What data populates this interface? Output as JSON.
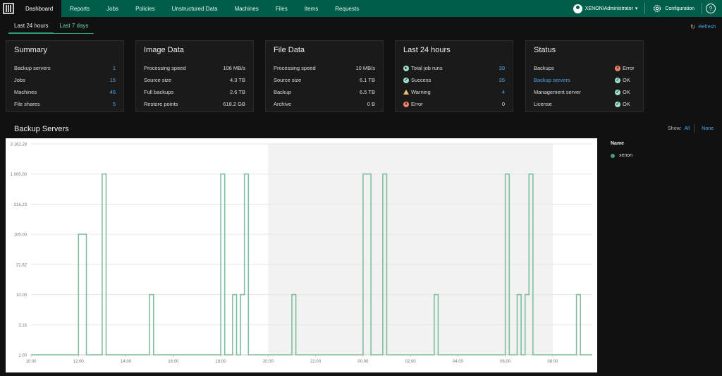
{
  "nav": {
    "items": [
      "Dashboard",
      "Reports",
      "Jobs",
      "Policies",
      "Unstructured Data",
      "Machines",
      "Files",
      "Items",
      "Requests"
    ],
    "user": "XENON\\Administrator",
    "config": "Configuration",
    "help": "?"
  },
  "period_tabs": [
    "Last 24 hours",
    "Last 7 days"
  ],
  "refresh": "Refresh",
  "cards": {
    "summary": {
      "title": "Summary",
      "rows": [
        {
          "k": "Backup servers",
          "v": "1"
        },
        {
          "k": "Jobs",
          "v": "15"
        },
        {
          "k": "Machines",
          "v": "46"
        },
        {
          "k": "File shares",
          "v": "5"
        }
      ]
    },
    "image": {
      "title": "Image Data",
      "rows": [
        {
          "k": "Processing speed",
          "v": "106 MB/s"
        },
        {
          "k": "Source size",
          "v": "4.3 TB"
        },
        {
          "k": "Full backups",
          "v": "2.6 TB"
        },
        {
          "k": "Restore points",
          "v": "618.2 GB"
        }
      ]
    },
    "file": {
      "title": "File Data",
      "rows": [
        {
          "k": "Processing speed",
          "v": "10 MB/s"
        },
        {
          "k": "Source size",
          "v": "6.1 TB"
        },
        {
          "k": "Backup",
          "v": "6.5 TB"
        },
        {
          "k": "Archive",
          "v": "0 B"
        }
      ]
    },
    "last24": {
      "title": "Last 24 hours",
      "rows": [
        {
          "k": "Total job runs",
          "v": "39"
        },
        {
          "k": "Success",
          "v": "35"
        },
        {
          "k": "Warning",
          "v": "4"
        },
        {
          "k": "Error",
          "v": "0"
        }
      ]
    },
    "status": {
      "title": "Status",
      "rows": [
        {
          "k": "Backups",
          "v": "Error"
        },
        {
          "k": "Backup servers",
          "v": "OK"
        },
        {
          "k": "Management server",
          "v": "OK"
        },
        {
          "k": "License",
          "v": "OK"
        }
      ]
    }
  },
  "section": {
    "title": "Backup Servers",
    "show_label": "Show:",
    "all": "All",
    "none": "None"
  },
  "legend": {
    "header": "Name",
    "item": "xenon"
  },
  "colors": {
    "topbar": "#005f4b",
    "line": "#7fbf9f",
    "link": "#4aa8f0",
    "shade": "#f2f2f2"
  },
  "chart_data": {
    "type": "line",
    "y_scale": "log",
    "ylim": [
      1,
      3162.28
    ],
    "y_ticks": [
      "1.00",
      "3.16",
      "10.00",
      "31.62",
      "100.00",
      "316.23",
      "1 000.00",
      "3 162.28"
    ],
    "x_ticks": [
      "10:00",
      "12:00",
      "14:00",
      "16:00",
      "18:00",
      "20:00",
      "22:00",
      "00:00",
      "02:00",
      "04:00",
      "06:00",
      "08:00"
    ],
    "shaded_range": [
      "20:00",
      "08:00"
    ],
    "series": [
      {
        "name": "xenon",
        "points": [
          [
            "10:00",
            1
          ],
          [
            "12:00",
            1
          ],
          [
            "12:00",
            100
          ],
          [
            "12:20",
            100
          ],
          [
            "12:20",
            1
          ],
          [
            "13:00",
            1
          ],
          [
            "13:00",
            1000
          ],
          [
            "13:10",
            1000
          ],
          [
            "13:10",
            1
          ],
          [
            "15:00",
            1
          ],
          [
            "15:00",
            10
          ],
          [
            "15:10",
            10
          ],
          [
            "15:10",
            1
          ],
          [
            "18:00",
            1
          ],
          [
            "18:00",
            1000
          ],
          [
            "18:10",
            1000
          ],
          [
            "18:10",
            1
          ],
          [
            "18:30",
            1
          ],
          [
            "18:30",
            10
          ],
          [
            "18:40",
            10
          ],
          [
            "18:40",
            1
          ],
          [
            "18:50",
            1
          ],
          [
            "18:50",
            10
          ],
          [
            "19:00",
            10
          ],
          [
            "19:00",
            1000
          ],
          [
            "19:10",
            1000
          ],
          [
            "19:10",
            1
          ],
          [
            "21:00",
            1
          ],
          [
            "21:00",
            10
          ],
          [
            "21:10",
            10
          ],
          [
            "21:10",
            1
          ],
          [
            "00:00",
            1
          ],
          [
            "00:00",
            1000
          ],
          [
            "00:20",
            1000
          ],
          [
            "00:20",
            1
          ],
          [
            "00:50",
            1
          ],
          [
            "00:50",
            1000
          ],
          [
            "01:00",
            1000
          ],
          [
            "01:00",
            1
          ],
          [
            "03:00",
            1
          ],
          [
            "03:00",
            10
          ],
          [
            "03:10",
            10
          ],
          [
            "03:10",
            1
          ],
          [
            "06:00",
            1
          ],
          [
            "06:00",
            1000
          ],
          [
            "06:10",
            1000
          ],
          [
            "06:10",
            1
          ],
          [
            "06:30",
            1
          ],
          [
            "06:30",
            10
          ],
          [
            "06:40",
            10
          ],
          [
            "06:40",
            1
          ],
          [
            "06:50",
            1
          ],
          [
            "06:50",
            10
          ],
          [
            "07:00",
            10
          ],
          [
            "07:00",
            1000
          ],
          [
            "07:10",
            1000
          ],
          [
            "07:10",
            1
          ],
          [
            "09:00",
            1
          ],
          [
            "09:00",
            10
          ],
          [
            "09:10",
            10
          ],
          [
            "09:10",
            1
          ],
          [
            "09:40",
            1
          ]
        ]
      }
    ]
  }
}
